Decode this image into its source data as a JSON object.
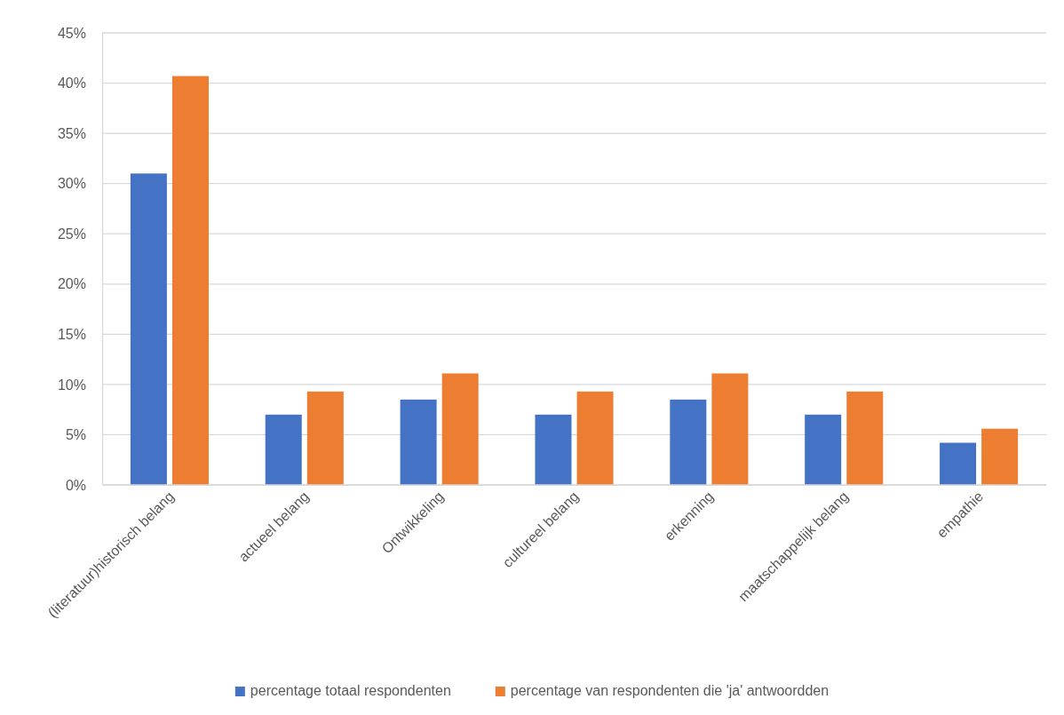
{
  "chart_data": {
    "type": "bar",
    "categories": [
      "(literatuur)historisch belang",
      "actueel belang",
      "Ontwikkeling",
      "cultureel belang",
      "erkenning",
      "maatschappelijk belang",
      "empathie"
    ],
    "series": [
      {
        "name": "percentage totaal respondenten",
        "color": "#4472c4",
        "values": [
          31.0,
          7.0,
          8.5,
          7.0,
          8.5,
          7.0,
          4.2
        ]
      },
      {
        "name": "percentage van respondenten die 'ja' antwoordden",
        "color": "#ed7d31",
        "values": [
          40.7,
          9.3,
          11.1,
          9.3,
          11.1,
          9.3,
          5.6
        ]
      }
    ],
    "ylim": [
      0,
      45
    ],
    "yticks": [
      {
        "value": 0,
        "label": "0%"
      },
      {
        "value": 5,
        "label": "5%"
      },
      {
        "value": 10,
        "label": "10%"
      },
      {
        "value": 15,
        "label": "15%"
      },
      {
        "value": 20,
        "label": "20%"
      },
      {
        "value": 25,
        "label": "25%"
      },
      {
        "value": 30,
        "label": "30%"
      },
      {
        "value": 35,
        "label": "35%"
      },
      {
        "value": 40,
        "label": "40%"
      },
      {
        "value": 45,
        "label": "45%"
      }
    ],
    "grid": "y",
    "legend": "bottom"
  }
}
